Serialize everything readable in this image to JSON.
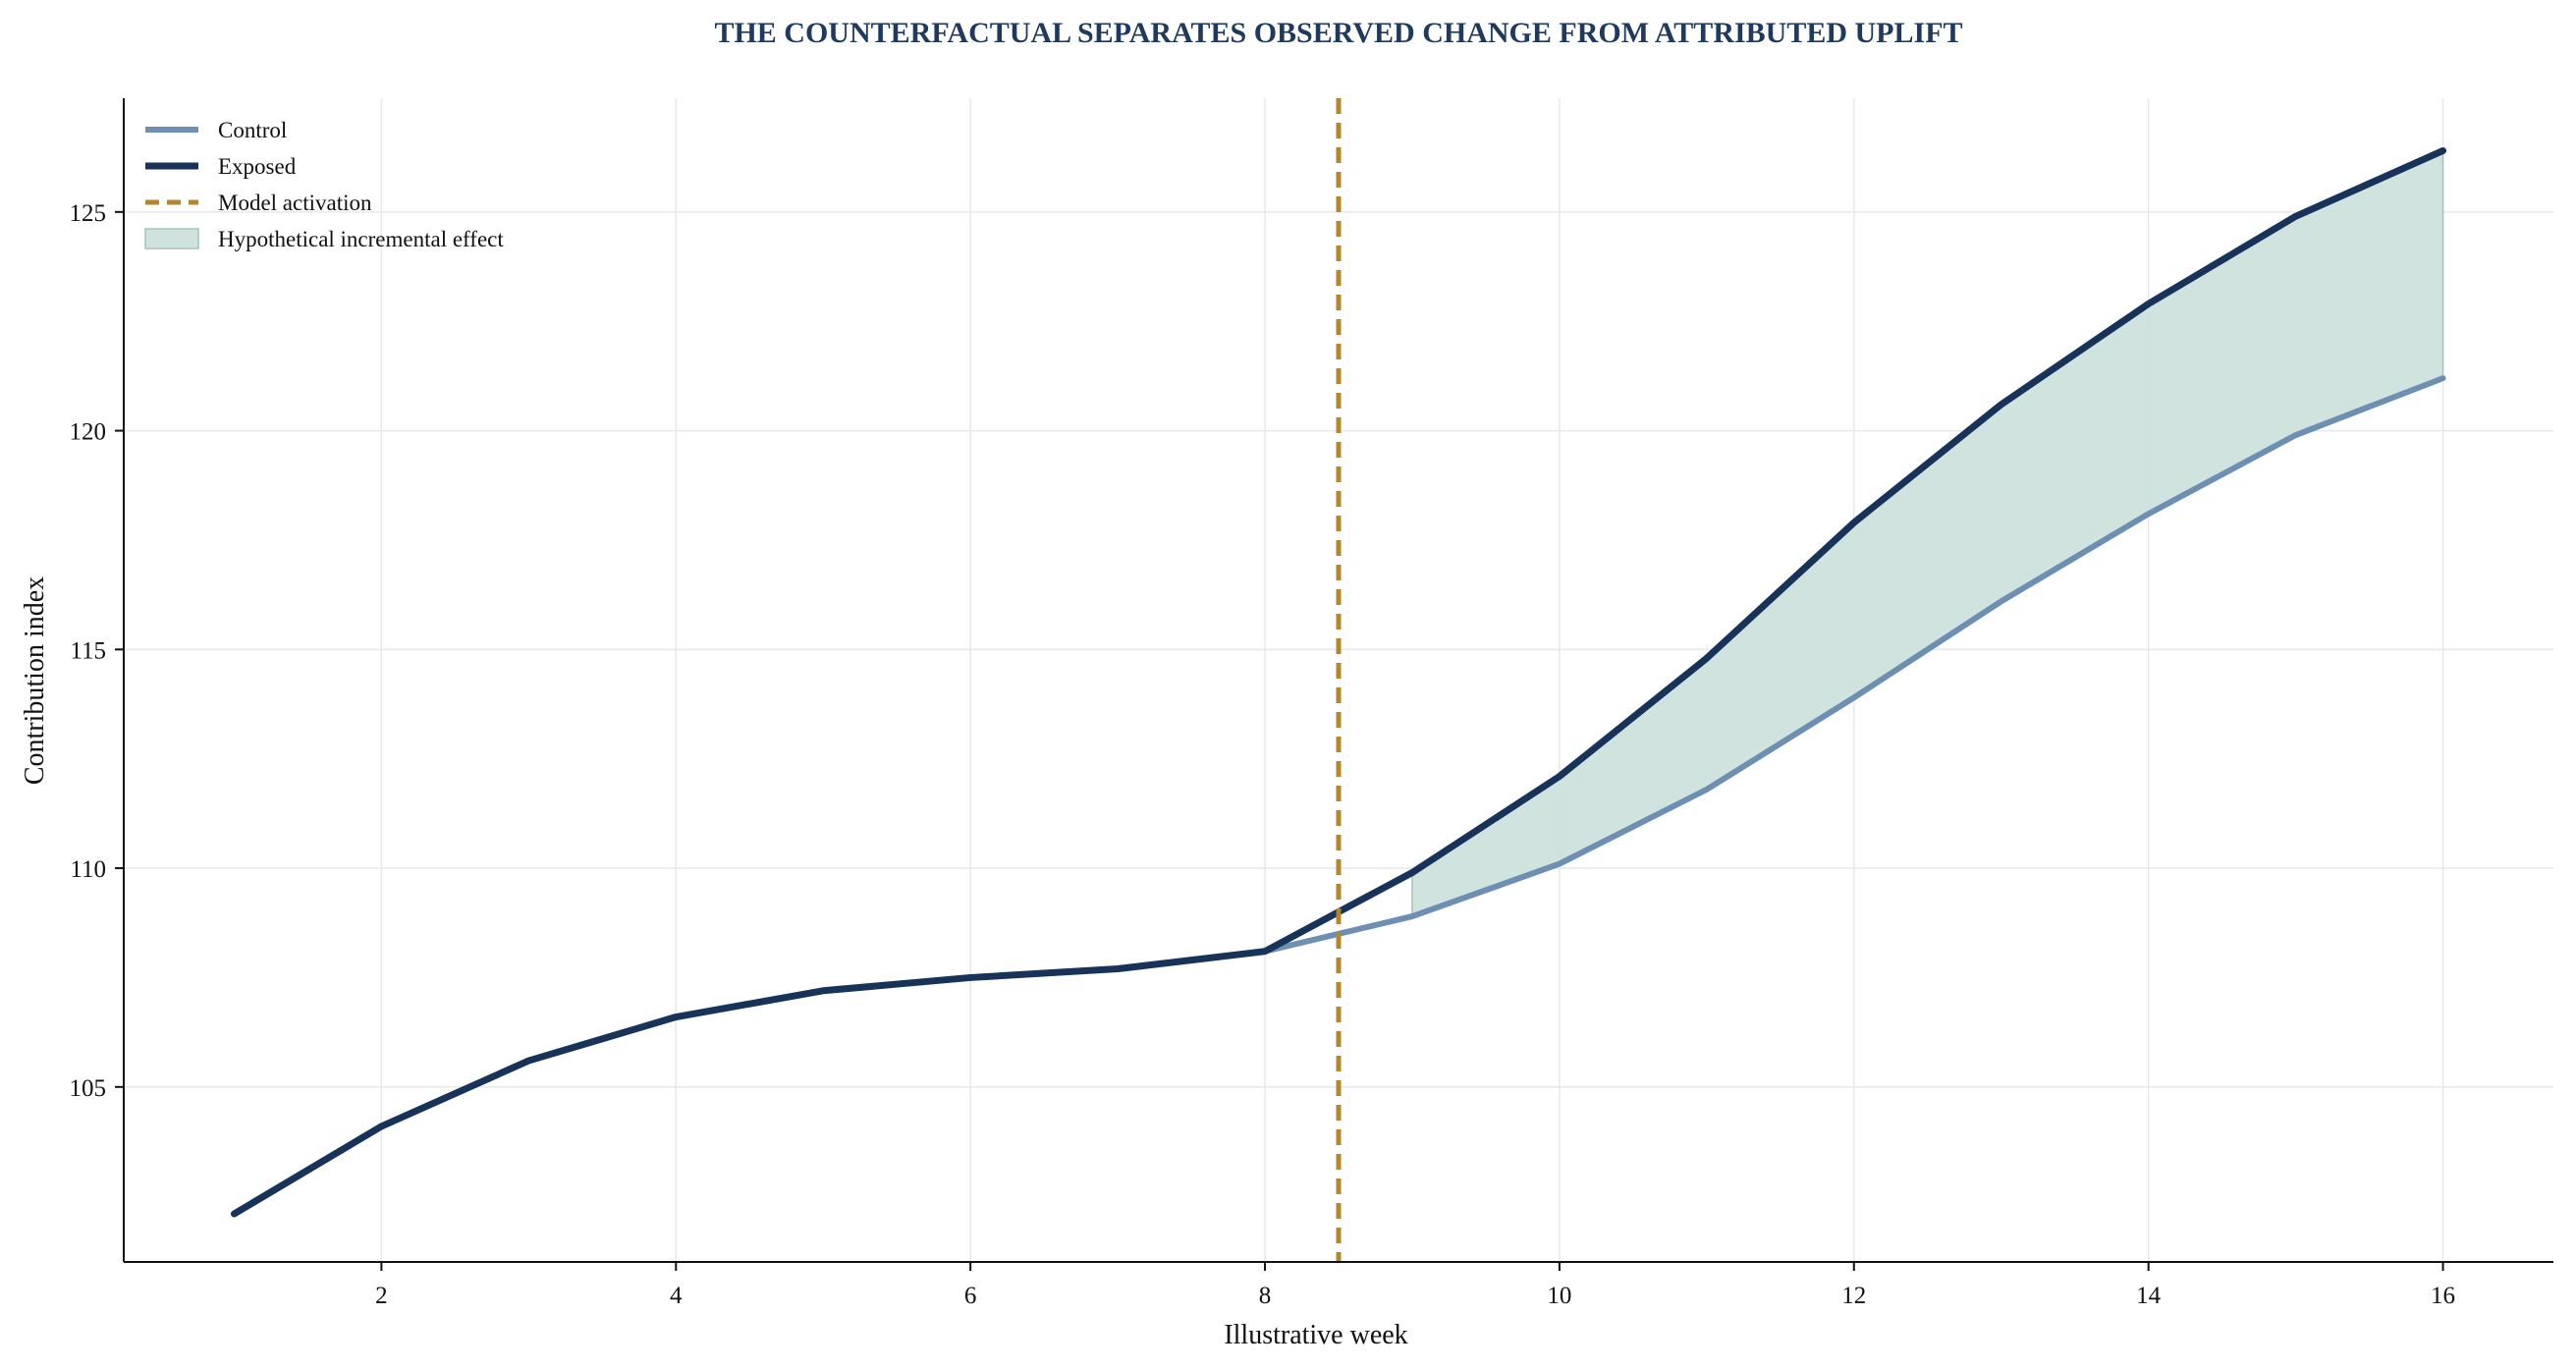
{
  "chart_data": {
    "type": "line",
    "title": "THE COUNTERFACTUAL SEPARATES OBSERVED CHANGE FROM ATTRIBUTED UPLIFT",
    "xlabel": "Illustrative week",
    "ylabel": "Contribution index",
    "xlim": [
      0.25,
      16.75
    ],
    "ylim": [
      101.0,
      127.6
    ],
    "xticks": [
      2,
      4,
      6,
      8,
      10,
      12,
      14,
      16
    ],
    "yticks": [
      105,
      110,
      115,
      120,
      125
    ],
    "grid": true,
    "legend_position": "top-left",
    "x": [
      1,
      2,
      3,
      4,
      5,
      6,
      7,
      8,
      9,
      10,
      11,
      12,
      13,
      14,
      15,
      16
    ],
    "series": [
      {
        "name": "Control",
        "color": "#6d8fb3",
        "values": [
          102.1,
          104.1,
          105.6,
          106.6,
          107.2,
          107.5,
          107.7,
          108.1,
          108.9,
          110.1,
          111.8,
          113.9,
          116.1,
          118.1,
          119.9,
          121.2
        ]
      },
      {
        "name": "Exposed",
        "color": "#18335a",
        "values": [
          102.1,
          104.1,
          105.6,
          106.6,
          107.2,
          107.5,
          107.7,
          108.1,
          109.9,
          112.1,
          114.8,
          117.9,
          120.6,
          122.9,
          124.9,
          126.4
        ]
      }
    ],
    "activation": {
      "name": "Model activation",
      "x": 8.5,
      "color": "#b5862b"
    },
    "shaded_region": {
      "name": "Hypothetical incremental effect",
      "x_start": 9,
      "x_end": 16,
      "color": "#cfe2dd",
      "edge_color": "#9fc5bb"
    }
  }
}
